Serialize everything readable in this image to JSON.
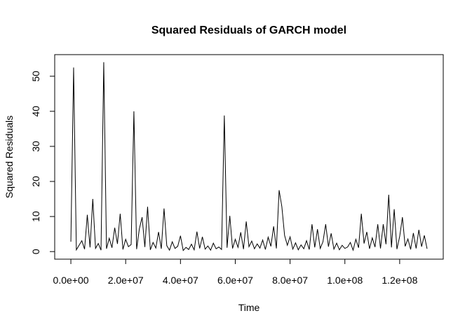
{
  "chart_data": {
    "type": "line",
    "title": "Squared Residuals of GARCH model",
    "x_label": "Time",
    "y_label": "Squared Residuals",
    "x": [
      0,
      1000000,
      2000000,
      3000000,
      4000000,
      5000000,
      6000000,
      7000000,
      8000000,
      9000000,
      10000000,
      11000000,
      12000000,
      13000000,
      14000000,
      15000000,
      16000000,
      17000000,
      18000000,
      19000000,
      20000000,
      21000000,
      22000000,
      23000000,
      24000000,
      25000000,
      26000000,
      27000000,
      28000000,
      29000000,
      30000000,
      31000000,
      32000000,
      33000000,
      34000000,
      35000000,
      36000000,
      37000000,
      38000000,
      39000000,
      40000000,
      41000000,
      42000000,
      43000000,
      44000000,
      45000000,
      46000000,
      47000000,
      48000000,
      49000000,
      50000000,
      51000000,
      52000000,
      53000000,
      54000000,
      55000000,
      56000000,
      57000000,
      58000000,
      59000000,
      60000000,
      61000000,
      62000000,
      63000000,
      64000000,
      65000000,
      66000000,
      67000000,
      68000000,
      69000000,
      70000000,
      71000000,
      72000000,
      73000000,
      74000000,
      75000000,
      76000000,
      77000000,
      78000000,
      79000000,
      80000000,
      81000000,
      82000000,
      83000000,
      84000000,
      85000000,
      86000000,
      87000000,
      88000000,
      89000000,
      90000000,
      91000000,
      92000000,
      93000000,
      94000000,
      95000000,
      96000000,
      97000000,
      98000000,
      99000000,
      100000000,
      101000000,
      102000000,
      103000000,
      104000000,
      105000000,
      106000000,
      107000000,
      108000000,
      109000000,
      110000000,
      111000000,
      112000000,
      113000000,
      114000000,
      115000000,
      116000000,
      117000000,
      118000000,
      119000000,
      120000000,
      121000000,
      122000000,
      123000000,
      124000000,
      125000000,
      126000000,
      127000000,
      128000000,
      129000000,
      130000000
    ],
    "values": [
      2.8,
      52.5,
      0.5,
      1.8,
      3.1,
      0.7,
      10.5,
      1.2,
      15,
      0.9,
      2.3,
      0.4,
      54,
      0.8,
      3.8,
      1.1,
      6.8,
      2.2,
      10.8,
      0.6,
      3.5,
      1.4,
      2.0,
      40,
      0.7,
      6.5,
      9.8,
      1.3,
      12.8,
      0.5,
      2.6,
      1.0,
      5.6,
      0.8,
      12.3,
      1.7,
      0.4,
      2.8,
      0.9,
      1.5,
      4.5,
      0.3,
      1.2,
      0.6,
      2.1,
      0.5,
      5.7,
      0.9,
      4.2,
      0.7,
      1.6,
      0.4,
      2.4,
      0.8,
      1.3,
      0.6,
      38.8,
      1.1,
      10.2,
      0.9,
      3.5,
      1.2,
      5.5,
      0.7,
      8.6,
      1.4,
      3.0,
      0.8,
      2.2,
      1.0,
      3.3,
      0.6,
      4.1,
      1.5,
      7.2,
      0.9,
      17.5,
      12.8,
      4.6,
      1.8,
      4.2,
      0.7,
      2.5,
      0.5,
      1.9,
      0.8,
      3.1,
      0.6,
      7.8,
      1.2,
      6.4,
      0.9,
      2.8,
      7.8,
      1.4,
      5.2,
      0.7,
      2.4,
      0.5,
      1.8,
      0.9,
      1.3,
      2.6,
      0.4,
      3.5,
      1.1,
      10.8,
      2.3,
      5.6,
      0.8,
      3.9,
      1.3,
      7.8,
      0.9,
      7.8,
      2.1,
      16.2,
      1.2,
      12.1,
      0.7,
      4.3,
      9.8,
      1.5,
      3.6,
      0.6,
      5.3,
      0.9,
      6.2,
      1.4,
      4.6,
      0.8
    ],
    "color": "#000000",
    "xlim": [
      -5900000,
      135900000
    ],
    "xticks": [
      {
        "value": 0,
        "label": "0.0e+00"
      },
      {
        "value": 20000000,
        "label": "2.0e+07"
      },
      {
        "value": 40000000,
        "label": "4.0e+07"
      },
      {
        "value": 60000000,
        "label": "6.0e+07"
      },
      {
        "value": 80000000,
        "label": "8.0e+07"
      },
      {
        "value": 100000000,
        "label": "1.0e+08"
      },
      {
        "value": 120000000,
        "label": "1.2e+08"
      }
    ],
    "ylim": [
      -2.16,
      56.16
    ],
    "yticks": [
      0,
      10,
      20,
      30,
      40,
      50
    ]
  }
}
